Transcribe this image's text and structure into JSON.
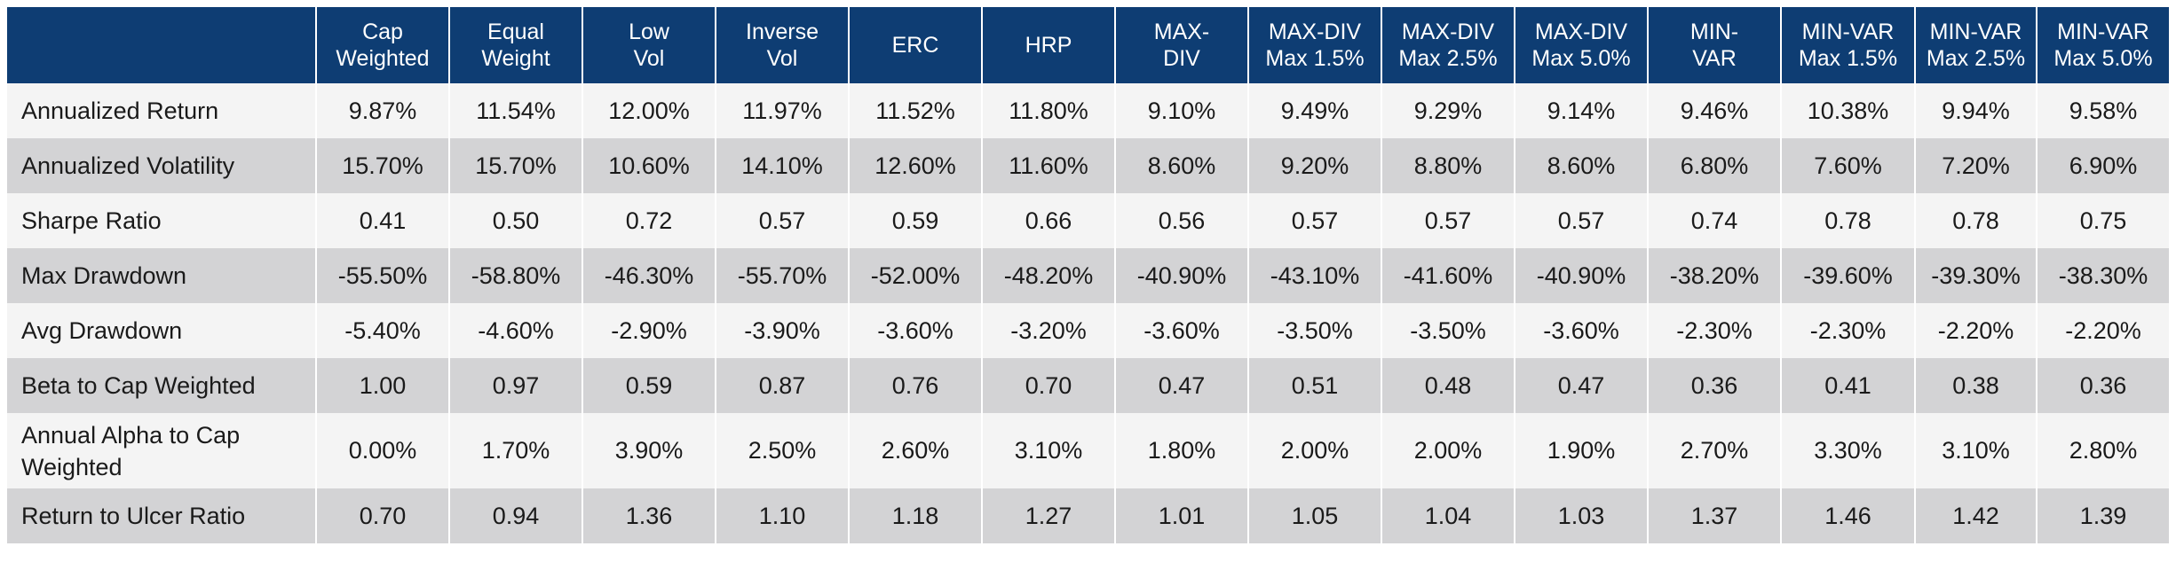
{
  "table": {
    "corner": "",
    "columns": [
      [
        "Cap",
        "Weighted"
      ],
      [
        "Equal",
        "Weight"
      ],
      [
        "Low",
        "Vol"
      ],
      [
        "Inverse",
        "Vol"
      ],
      [
        "ERC"
      ],
      [
        "HRP"
      ],
      [
        "MAX-",
        "DIV"
      ],
      [
        "MAX-DIV",
        "Max 1.5%"
      ],
      [
        "MAX-DIV",
        "Max 2.5%"
      ],
      [
        "MAX-DIV",
        "Max 5.0%"
      ],
      [
        "MIN-",
        "VAR"
      ],
      [
        "MIN-VAR",
        "Max 1.5%"
      ],
      [
        "MIN-VAR",
        "Max 2.5%"
      ],
      [
        "MIN-VAR",
        "Max 5.0%"
      ]
    ],
    "rows": [
      {
        "label": [
          "Annualized Return"
        ],
        "values": [
          "9.87%",
          "11.54%",
          "12.00%",
          "11.97%",
          "11.52%",
          "11.80%",
          "9.10%",
          "9.49%",
          "9.29%",
          "9.14%",
          "9.46%",
          "10.38%",
          "9.94%",
          "9.58%"
        ]
      },
      {
        "label": [
          "Annualized Volatility"
        ],
        "values": [
          "15.70%",
          "15.70%",
          "10.60%",
          "14.10%",
          "12.60%",
          "11.60%",
          "8.60%",
          "9.20%",
          "8.80%",
          "8.60%",
          "6.80%",
          "7.60%",
          "7.20%",
          "6.90%"
        ]
      },
      {
        "label": [
          "Sharpe Ratio"
        ],
        "values": [
          "0.41",
          "0.50",
          "0.72",
          "0.57",
          "0.59",
          "0.66",
          "0.56",
          "0.57",
          "0.57",
          "0.57",
          "0.74",
          "0.78",
          "0.78",
          "0.75"
        ]
      },
      {
        "label": [
          "Max Drawdown"
        ],
        "values": [
          "-55.50%",
          "-58.80%",
          "-46.30%",
          "-55.70%",
          "-52.00%",
          "-48.20%",
          "-40.90%",
          "-43.10%",
          "-41.60%",
          "-40.90%",
          "-38.20%",
          "-39.60%",
          "-39.30%",
          "-38.30%"
        ]
      },
      {
        "label": [
          "Avg Drawdown"
        ],
        "values": [
          "-5.40%",
          "-4.60%",
          "-2.90%",
          "-3.90%",
          "-3.60%",
          "-3.20%",
          "-3.60%",
          "-3.50%",
          "-3.50%",
          "-3.60%",
          "-2.30%",
          "-2.30%",
          "-2.20%",
          "-2.20%"
        ]
      },
      {
        "label": [
          "Beta to Cap Weighted"
        ],
        "values": [
          "1.00",
          "0.97",
          "0.59",
          "0.87",
          "0.76",
          "0.70",
          "0.47",
          "0.51",
          "0.48",
          "0.47",
          "0.36",
          "0.41",
          "0.38",
          "0.36"
        ]
      },
      {
        "label": [
          "Annual Alpha to Cap",
          "Weighted"
        ],
        "values": [
          "0.00%",
          "1.70%",
          "3.90%",
          "2.50%",
          "2.60%",
          "3.10%",
          "1.80%",
          "2.00%",
          "2.00%",
          "1.90%",
          "2.70%",
          "3.30%",
          "3.10%",
          "2.80%"
        ]
      },
      {
        "label": [
          "Return to Ulcer Ratio"
        ],
        "values": [
          "0.70",
          "0.94",
          "1.36",
          "1.10",
          "1.18",
          "1.27",
          "1.01",
          "1.05",
          "1.04",
          "1.03",
          "1.37",
          "1.46",
          "1.42",
          "1.39"
        ]
      }
    ]
  },
  "colors": {
    "header_bg": "#0e3d73",
    "header_text": "#ffffff",
    "row_light": "#f4f4f4",
    "row_dark": "#d3d3d5",
    "cell_text": "#1a1a1a"
  }
}
